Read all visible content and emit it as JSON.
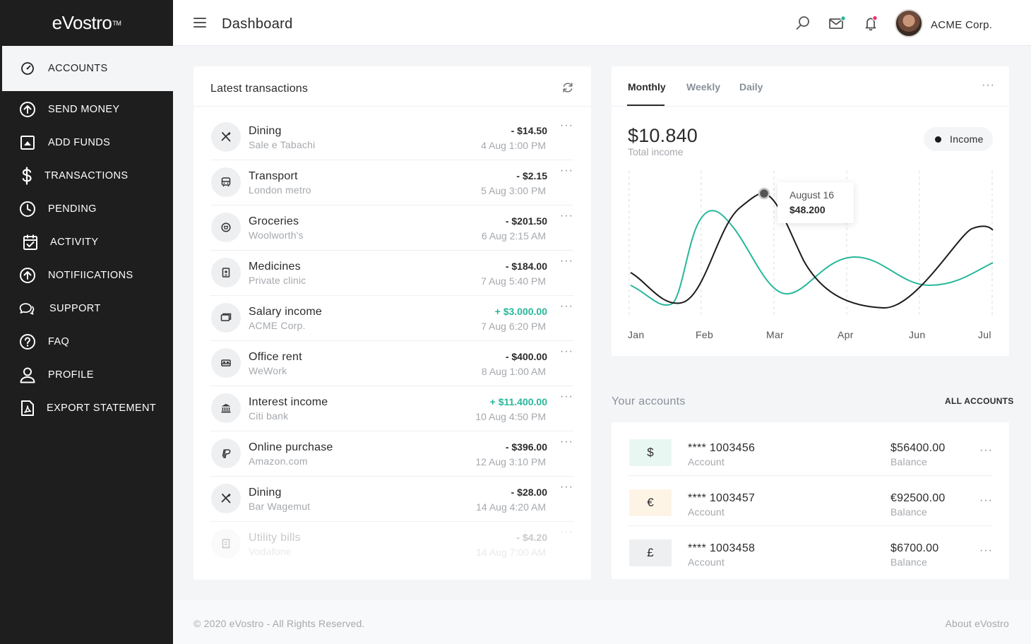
{
  "brand": {
    "name": "eVostro",
    "tm": "TM"
  },
  "sidebar": {
    "items": [
      {
        "label": "ACCOUNTS",
        "icon": "gauge-icon",
        "active": true
      },
      {
        "label": "SEND MONEY",
        "icon": "arrow-up-circle-icon"
      },
      {
        "label": "ADD FUNDS",
        "icon": "image-upload-icon"
      },
      {
        "label": "TRANSACTIONS",
        "icon": "dollar-icon"
      },
      {
        "label": "PENDING",
        "icon": "clock-icon"
      },
      {
        "label": "ACTIVITY",
        "icon": "calendar-check-icon"
      },
      {
        "label": "NOTIFIICATIONS",
        "icon": "arrow-up-circle-icon"
      },
      {
        "label": "SUPPORT",
        "icon": "chat-bubbles-icon"
      },
      {
        "label": "FAQ",
        "icon": "question-circle-icon"
      },
      {
        "label": "PROFILE",
        "icon": "user-icon"
      },
      {
        "label": "EXPORT STATEMENT",
        "icon": "pdf-file-icon"
      }
    ]
  },
  "header": {
    "title": "Dashboard",
    "company": "ACME Corp.",
    "colors": {
      "mail_dot": "#27b79b",
      "bell_dot": "#f0346b"
    }
  },
  "transactions": {
    "title": "Latest transactions",
    "items": [
      {
        "name": "Dining",
        "sub": "Sale e Tabachi",
        "amount": "- $14.50",
        "date": "4 Aug 1:00 PM",
        "icon": "fork-knife-icon",
        "positive": false
      },
      {
        "name": "Transport",
        "sub": "London metro",
        "amount": "- $2.15",
        "date": "5 Aug 3:00 PM",
        "icon": "bus-icon",
        "positive": false
      },
      {
        "name": "Groceries",
        "sub": "Woolworth's",
        "amount": "- $201.50",
        "date": "6 Aug 2:15 AM",
        "icon": "shop-icon",
        "positive": false
      },
      {
        "name": "Medicines",
        "sub": "Private clinic",
        "amount": "- $184.00",
        "date": "7 Aug 5:40 PM",
        "icon": "hospital-icon",
        "positive": false
      },
      {
        "name": "Salary income",
        "sub": "ACME Corp.",
        "amount": "+ $3.000.00",
        "date": "7 Aug 6:20 PM",
        "icon": "wallet-icon",
        "positive": true
      },
      {
        "name": "Office rent",
        "sub": "WeWork",
        "amount": "- $400.00",
        "date": "8 Aug 1:00 AM",
        "icon": "bed-icon",
        "positive": false
      },
      {
        "name": "Interest income",
        "sub": "Citi bank",
        "amount": "+ $11.400.00",
        "date": "10 Aug 4:50 PM",
        "icon": "bank-icon",
        "positive": true
      },
      {
        "name": "Online purchase",
        "sub": "Amazon.com",
        "amount": "- $396.00",
        "date": "12 Aug 3:10 PM",
        "icon": "paypal-icon",
        "positive": false
      },
      {
        "name": "Dining",
        "sub": "Bar Wagemut",
        "amount": "- $28.00",
        "date": "14 Aug 4:20 AM",
        "icon": "fork-knife-icon",
        "positive": false
      },
      {
        "name": "Utility bills",
        "sub": "Vodafone",
        "amount": "- $4.20",
        "date": "14 Aug 7:00 AM",
        "icon": "receipt-icon",
        "positive": false
      }
    ]
  },
  "income_chart": {
    "tabs": [
      "Monthly",
      "Weekly",
      "Daily"
    ],
    "active_tab": "Monthly",
    "total": "$10.840",
    "total_label": "Total income",
    "legend": "Income",
    "tooltip": {
      "date": "August 16",
      "value": "$48.200"
    },
    "colors": {
      "income": "#1a1a1a",
      "secondary": "#27b79b"
    }
  },
  "chart_data": {
    "type": "line",
    "x": [
      "Jan",
      "Feb",
      "Mar",
      "Apr",
      "Jun",
      "Jul"
    ],
    "series": [
      {
        "name": "Income",
        "color": "#1a1a1a"
      },
      {
        "color": "#27b79b"
      }
    ],
    "grid": "vertical dashed",
    "legend": "top-right"
  },
  "accounts": {
    "title": "Your accounts",
    "all_label": "ALL ACCOUNTS",
    "items": [
      {
        "symbol": "$",
        "number": "**** 1003456",
        "sub": "Account",
        "balance": "$56400.00",
        "balance_label": "Balance",
        "badge_color": "#e9f7f3"
      },
      {
        "symbol": "€",
        "number": "**** 1003457",
        "sub": "Account",
        "balance": "€92500.00",
        "balance_label": "Balance",
        "badge_color": "#fdf4e6"
      },
      {
        "symbol": "£",
        "number": "**** 1003458",
        "sub": "Account",
        "balance": "$6700.00",
        "balance_label": "Balance",
        "badge_color": "#eeeff1"
      }
    ]
  },
  "footer": {
    "copyright": "© 2020 eVostro - All Rights Reserved.",
    "about": "About eVostro"
  }
}
